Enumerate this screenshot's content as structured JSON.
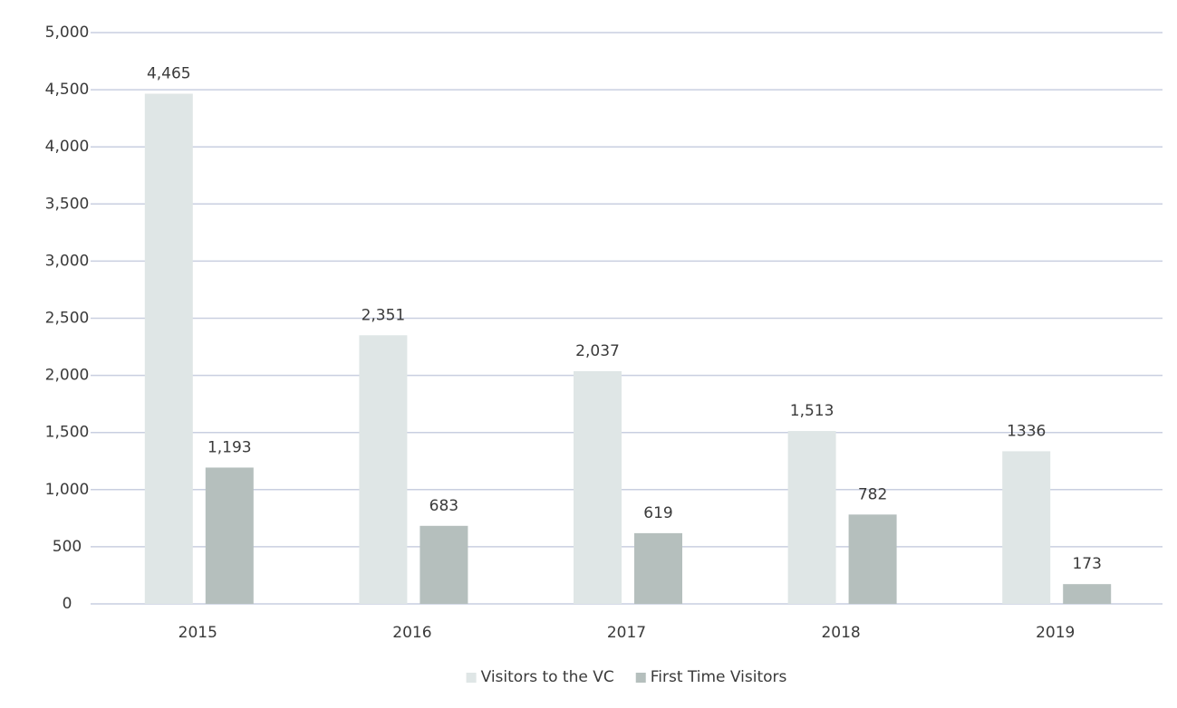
{
  "chart_data": {
    "type": "bar",
    "categories": [
      "2015",
      "2016",
      "2017",
      "2018",
      "2019"
    ],
    "series": [
      {
        "name": "Visitors to the VC",
        "color": "#dfe6e6",
        "values": [
          4465,
          2351,
          2037,
          1513,
          1336
        ],
        "value_labels": [
          "4,465",
          "2,351",
          "2,037",
          "1,513",
          "1336"
        ]
      },
      {
        "name": "First Time Visitors",
        "color": "#b5bfbd",
        "values": [
          1193,
          683,
          619,
          782,
          173
        ],
        "value_labels": [
          "1,193",
          "683",
          "619",
          "782",
          "173"
        ]
      }
    ],
    "ylim": [
      0,
      5000
    ],
    "yticks": [
      0,
      500,
      {
        "value": 1000,
        "label": "1,000"
      },
      {
        "value": 1500,
        "label": "1,500"
      },
      {
        "value": 2000,
        "label": "2,000"
      },
      {
        "value": 2500,
        "label": "2,500"
      },
      {
        "value": 3000,
        "label": "3,000"
      },
      {
        "value": 3500,
        "label": "3,500"
      },
      {
        "value": 4000,
        "label": "4,000"
      },
      {
        "value": 4500,
        "label": "4,500"
      },
      {
        "value": 5000,
        "label": "5,000"
      }
    ],
    "grid": true,
    "legend": "bottom"
  }
}
